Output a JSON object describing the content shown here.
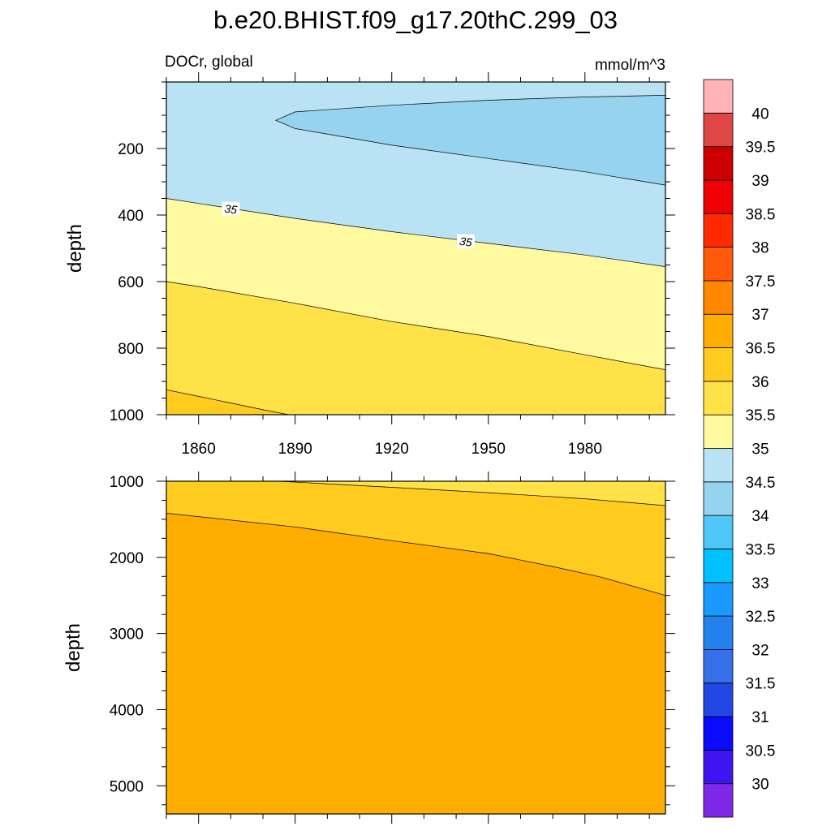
{
  "title": "b.e20.BHIST.f09_g17.20thC.299_03",
  "left_label": "DOCr, global",
  "right_label": "mmol/m^3",
  "colors": {
    "levels": [
      "#8128e8",
      "#3e14f0",
      "#0a0aff",
      "#2347e5",
      "#3570e8",
      "#2381ee",
      "#1a9aff",
      "#00c0ff",
      "#4ec6f6",
      "#96d3ee",
      "#b9e2f5",
      "#fff9a0",
      "#ffe247",
      "#ffcb1e",
      "#ffad00",
      "#ff8800",
      "#ff5a09",
      "#ff2a00",
      "#ee0005",
      "#cc0000",
      "#df4646",
      "#ffb3b6"
    ]
  },
  "chart_data": [
    {
      "type": "contour",
      "panel": "upper",
      "xlabel": "",
      "ylabel": "depth",
      "xlim": [
        1850,
        2005
      ],
      "ylim": [
        0,
        1000
      ],
      "y_inverted": true,
      "xticks": [
        1860,
        1890,
        1920,
        1950,
        1980
      ],
      "yticks": [
        200,
        400,
        600,
        800,
        1000
      ],
      "regions": [
        {
          "range": [
            34.5,
            35
          ],
          "desc": "background near surface",
          "color": "#b9e2f5"
        },
        {
          "range": [
            34,
            34.5
          ],
          "desc": "tongue from ~1884 to 2005, depth ~40-310",
          "color": "#96d3ee"
        },
        {
          "range": [
            35,
            35.5
          ],
          "color": "#fff9a0"
        },
        {
          "range": [
            35.5,
            36
          ],
          "color": "#ffe247"
        },
        {
          "range": [
            36,
            36.5
          ],
          "color": "#ffcb1e"
        }
      ],
      "contours": [
        {
          "level": 34.5,
          "x": [
            1884,
            1890,
            1920,
            1950,
            1980,
            2005
          ],
          "y_upper": [
            115,
            90,
            70,
            55,
            45,
            40
          ],
          "y_lower": [
            115,
            140,
            190,
            230,
            270,
            310
          ]
        },
        {
          "level": 35,
          "x": [
            1850,
            1860,
            1890,
            1920,
            1950,
            1980,
            2005
          ],
          "y": [
            350,
            365,
            410,
            450,
            485,
            520,
            555
          ]
        },
        {
          "level": 35.5,
          "x": [
            1850,
            1860,
            1890,
            1920,
            1950,
            1980,
            2005
          ],
          "y": [
            600,
            615,
            665,
            720,
            765,
            820,
            865
          ]
        },
        {
          "level": 36,
          "x": [
            1850,
            1860,
            1870,
            1880,
            1888
          ],
          "y": [
            925,
            945,
            965,
            985,
            1000
          ]
        }
      ],
      "contour_labels": [
        {
          "text": "35",
          "x": 1870,
          "y": 382
        },
        {
          "text": "35",
          "x": 1943,
          "y": 480
        }
      ]
    },
    {
      "type": "contour",
      "panel": "lower",
      "xlabel": "",
      "ylabel": "depth",
      "xlim": [
        1850,
        2005
      ],
      "ylim": [
        1000,
        5370
      ],
      "y_inverted": true,
      "yticks": [
        1000,
        2000,
        3000,
        4000,
        5000
      ],
      "regions": [
        {
          "range": [
            35.5,
            36
          ],
          "color": "#ffe247"
        },
        {
          "range": [
            36,
            36.5
          ],
          "color": "#ffcb1e"
        },
        {
          "range": [
            36.5,
            37
          ],
          "color": "#ffad00"
        }
      ],
      "contours": [
        {
          "level": 36,
          "x": [
            1885,
            1920,
            1950,
            1980,
            2005
          ],
          "y": [
            1000,
            1080,
            1150,
            1230,
            1320
          ]
        },
        {
          "level": 36.5,
          "x": [
            1850,
            1890,
            1920,
            1950,
            1970,
            1985,
            2005
          ],
          "y": [
            1420,
            1600,
            1780,
            1950,
            2120,
            2260,
            2500
          ]
        }
      ]
    }
  ],
  "colorbar": {
    "labels": [
      "30",
      "30.5",
      "31",
      "31.5",
      "32",
      "32.5",
      "33",
      "33.5",
      "34",
      "34.5",
      "35",
      "35.5",
      "36",
      "36.5",
      "37",
      "37.5",
      "38",
      "38.5",
      "39",
      "39.5",
      "40"
    ]
  }
}
